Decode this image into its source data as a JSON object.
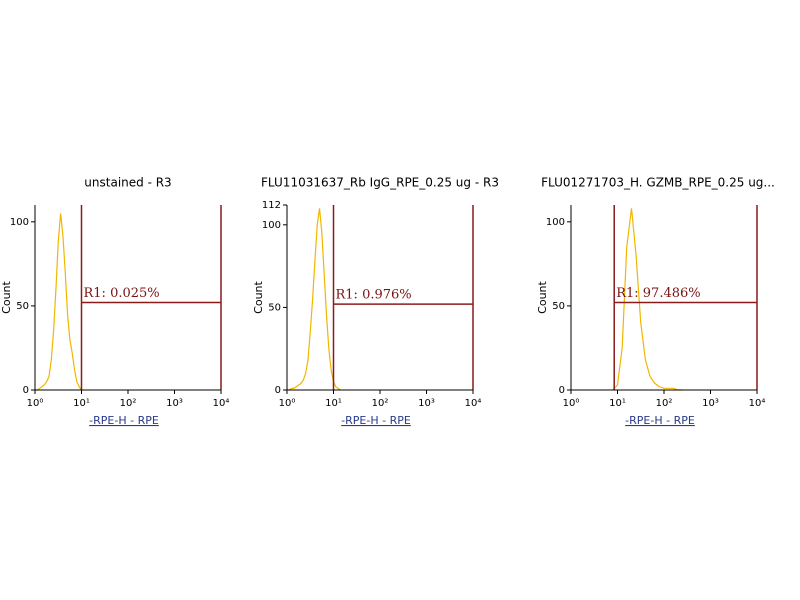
{
  "chart_data": [
    {
      "type": "line",
      "title": "unstained - R3",
      "xlabel": "-RPE-H - RPE",
      "ylabel": "Count",
      "xscale": "log",
      "xlim": [
        1,
        10000
      ],
      "xticks": [
        {
          "value": 1,
          "label": "10⁰"
        },
        {
          "value": 10,
          "label": "10¹"
        },
        {
          "value": 100,
          "label": "10²"
        },
        {
          "value": 1000,
          "label": "10³"
        },
        {
          "value": 10000,
          "label": "10⁴"
        }
      ],
      "ylim": [
        0,
        110
      ],
      "yticks": [
        0,
        50,
        100
      ],
      "x": [
        1,
        1.12,
        1.26,
        1.41,
        1.58,
        1.78,
        2,
        2.24,
        2.51,
        2.82,
        3.16,
        3.55,
        3.98,
        4.47,
        5.01,
        5.62,
        6.31,
        7.08,
        7.94,
        8.91,
        10
      ],
      "values": [
        0,
        0,
        1,
        2,
        3,
        5,
        8,
        18,
        35,
        60,
        88,
        105,
        92,
        70,
        45,
        30,
        22,
        12,
        5,
        2,
        0
      ],
      "color": "#f2b600",
      "region": {
        "label": "R1: 0.025%",
        "x1": 10,
        "x2": 10000,
        "y": 52,
        "color": "#8b1a1a"
      }
    },
    {
      "type": "line",
      "title": "FLU11031637_Rb IgG_RPE_0.25 ug - R3",
      "xlabel": "-RPE-H - RPE",
      "ylabel": "Count",
      "xscale": "log",
      "xlim": [
        1,
        10000
      ],
      "xticks": [
        {
          "value": 1,
          "label": "10⁰"
        },
        {
          "value": 10,
          "label": "10¹"
        },
        {
          "value": 100,
          "label": "10²"
        },
        {
          "value": 1000,
          "label": "10³"
        },
        {
          "value": 10000,
          "label": "10⁴"
        }
      ],
      "ylim": [
        0,
        112
      ],
      "yticks": [
        0,
        50,
        100,
        112
      ],
      "x": [
        1,
        1.12,
        1.26,
        1.41,
        1.58,
        1.78,
        2,
        2.24,
        2.51,
        2.82,
        3.16,
        3.55,
        3.98,
        4.47,
        5.01,
        5.62,
        6.31,
        7.08,
        7.94,
        8.91,
        10,
        11.2,
        12.6,
        14.1
      ],
      "values": [
        0,
        0,
        1,
        1,
        2,
        3,
        4,
        6,
        10,
        18,
        35,
        55,
        78,
        100,
        110,
        95,
        70,
        45,
        25,
        12,
        5,
        2,
        1,
        0
      ],
      "color": "#f2b600",
      "region": {
        "label": "R1: 0.976%",
        "x1": 10,
        "x2": 10000,
        "y": 52,
        "color": "#8b1a1a"
      }
    },
    {
      "type": "line",
      "title": "FLU01271703_H. GZMB_RPE_0.25 ug...",
      "xlabel": "-RPE-H - RPE",
      "ylabel": "Count",
      "xscale": "log",
      "xlim": [
        1,
        10000
      ],
      "xticks": [
        {
          "value": 1,
          "label": "10⁰"
        },
        {
          "value": 10,
          "label": "10¹"
        },
        {
          "value": 100,
          "label": "10²"
        },
        {
          "value": 1000,
          "label": "10³"
        },
        {
          "value": 10000,
          "label": "10⁴"
        }
      ],
      "ylim": [
        0,
        110
      ],
      "yticks": [
        0,
        50,
        100
      ],
      "x": [
        7.94,
        10,
        12.6,
        15.8,
        20,
        25.1,
        31.6,
        39.8,
        50.1,
        63.1,
        79.4,
        100,
        126,
        158,
        200,
        251
      ],
      "values": [
        0,
        3,
        25,
        85,
        108,
        80,
        40,
        18,
        8,
        4,
        2,
        1,
        1,
        1,
        0,
        0
      ],
      "color": "#f2b600",
      "region": {
        "label": "R1: 97.486%",
        "x1": 8.5,
        "x2": 10000,
        "y": 52,
        "color": "#8b1a1a"
      }
    }
  ]
}
